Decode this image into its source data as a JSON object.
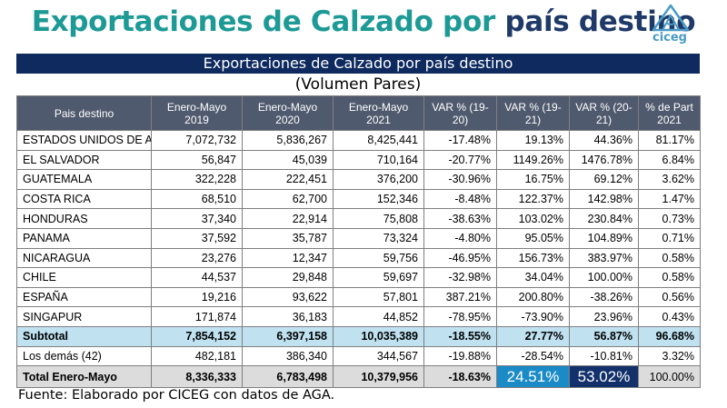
{
  "header": {
    "title_part1": "Exportaciones de Calzado por",
    "title_part2": "país destino",
    "logo_text": "ciceg"
  },
  "banner": "Exportaciones de Calzado por país destino",
  "subtitle": "(Volumen Pares)",
  "table": {
    "columns": [
      "Pais destino",
      "Enero-Mayo 2019",
      "Enero-Mayo 2020",
      "Enero-Mayo 2021",
      "VAR % (19-20)",
      "VAR % (19-21)",
      "VAR % (20-21)",
      "% de Part 2021"
    ],
    "rows": [
      [
        "ESTADOS UNIDOS DE A.",
        "7,072,732",
        "5,836,267",
        "8,425,441",
        "-17.48%",
        "19.13%",
        "44.36%",
        "81.17%"
      ],
      [
        "EL SALVADOR",
        "56,847",
        "45,039",
        "710,164",
        "-20.77%",
        "1149.26%",
        "1476.78%",
        "6.84%"
      ],
      [
        "GUATEMALA",
        "322,228",
        "222,451",
        "376,200",
        "-30.96%",
        "16.75%",
        "69.12%",
        "3.62%"
      ],
      [
        "COSTA RICA",
        "68,510",
        "62,700",
        "152,346",
        "-8.48%",
        "122.37%",
        "142.98%",
        "1.47%"
      ],
      [
        "HONDURAS",
        "37,340",
        "22,914",
        "75,808",
        "-38.63%",
        "103.02%",
        "230.84%",
        "0.73%"
      ],
      [
        "PANAMA",
        "37,592",
        "35,787",
        "73,324",
        "-4.80%",
        "95.05%",
        "104.89%",
        "0.71%"
      ],
      [
        "NICARAGUA",
        "23,276",
        "12,347",
        "59,756",
        "-46.95%",
        "156.73%",
        "383.97%",
        "0.58%"
      ],
      [
        "CHILE",
        "44,537",
        "29,848",
        "59,697",
        "-32.98%",
        "34.04%",
        "100.00%",
        "0.58%"
      ],
      [
        "ESPAÑA",
        "19,216",
        "93,622",
        "57,801",
        "387.21%",
        "200.80%",
        "-38.26%",
        "0.56%"
      ],
      [
        "SINGAPUR",
        "171,874",
        "36,183",
        "44,852",
        "-78.95%",
        "-73.90%",
        "23.96%",
        "0.43%"
      ]
    ],
    "subtotal": [
      "Subtotal",
      "7,854,152",
      "6,397,158",
      "10,035,389",
      "-18.55%",
      "27.77%",
      "56.87%",
      "96.68%"
    ],
    "others": [
      "Los demás (42)",
      "482,181",
      "386,340",
      "344,567",
      "-19.88%",
      "-28.54%",
      "-10.81%",
      "3.32%"
    ],
    "total": [
      "Total Enero-Mayo",
      "8,336,333",
      "6,783,498",
      "10,379,956",
      "-18.63%",
      "24.51%",
      "53.02%",
      "100.00%"
    ]
  },
  "source": "Fuente: Elaborado por CICEG con datos de AGA.",
  "colors": {
    "title_teal": "#1e9a96",
    "title_navy": "#1f3a68",
    "banner": "#0e2a5f",
    "header_row": "#505a6e",
    "subtotal_row": "#bfe1f0",
    "highlight_blue": "#1b8bc8",
    "highlight_navy": "#12306a"
  }
}
